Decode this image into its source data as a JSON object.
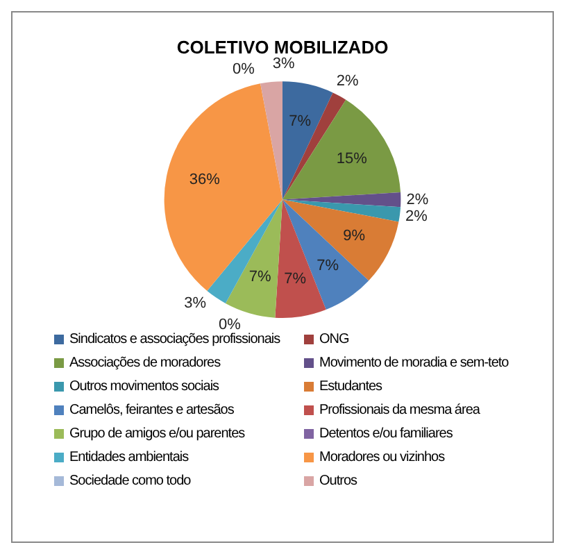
{
  "chart_data": {
    "type": "pie",
    "title": "COLETIVO MOBILIZADO",
    "categories": [
      "Sindicatos e associações profissionais",
      "ONG",
      "Associações de moradores",
      "Movimento de moradia e sem-teto",
      "Outros movimentos sociais",
      "Estudantes",
      "Camelôs, feirantes e artesãos",
      "Profissionais da mesma área",
      "Grupo de amigos e/ou parentes",
      "Detentos e/ou familiares",
      "Entidades ambientais",
      "Moradores ou vizinhos",
      "Sociedade como todo",
      "Outros"
    ],
    "values": [
      7,
      2,
      15,
      2,
      2,
      9,
      7,
      7,
      7,
      0,
      3,
      36,
      0,
      3
    ],
    "colors": [
      "#3d6a9f",
      "#a0403d",
      "#7a9a44",
      "#63508a",
      "#3a98ad",
      "#d97c35",
      "#4f81bd",
      "#c0504d",
      "#9bbb59",
      "#8064a2",
      "#4bacc6",
      "#f79646",
      "#a5b9d8",
      "#d9a5a4"
    ],
    "value_labels": [
      "7%",
      "2%",
      "15%",
      "2%",
      "2%",
      "9%",
      "7%",
      "7%",
      "7%",
      "0%",
      "3%",
      "36%",
      "0%",
      "3%"
    ],
    "legend": "bottom"
  }
}
